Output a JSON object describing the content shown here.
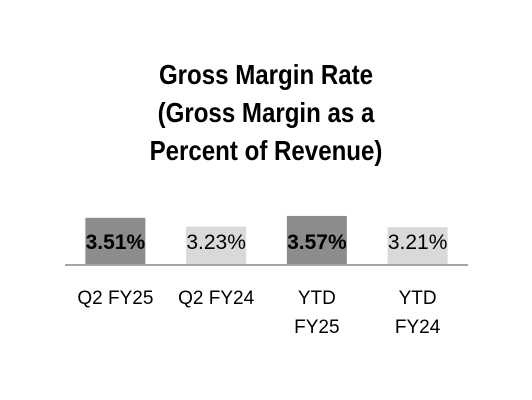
{
  "chart_data": {
    "type": "bar",
    "title_lines": [
      "Gross Margin Rate",
      "(Gross Margin as a",
      "Percent of Revenue)"
    ],
    "categories": [
      [
        "Q2 FY25"
      ],
      [
        "Q2 FY24"
      ],
      [
        "YTD",
        "FY25"
      ],
      [
        "YTD",
        "FY24"
      ]
    ],
    "values": [
      3.51,
      3.23,
      3.57,
      3.21
    ],
    "data_labels": [
      "3.51%",
      "3.23%",
      "3.57%",
      "3.21%"
    ],
    "label_bold": [
      true,
      false,
      true,
      false
    ],
    "colors": [
      "#8c8c8c",
      "#d9d9d9",
      "#8c8c8c",
      "#d9d9d9"
    ],
    "axis_color": "#a6a6a6",
    "ylim": [
      2.0,
      3.6
    ],
    "grid": false,
    "legend": "none"
  }
}
